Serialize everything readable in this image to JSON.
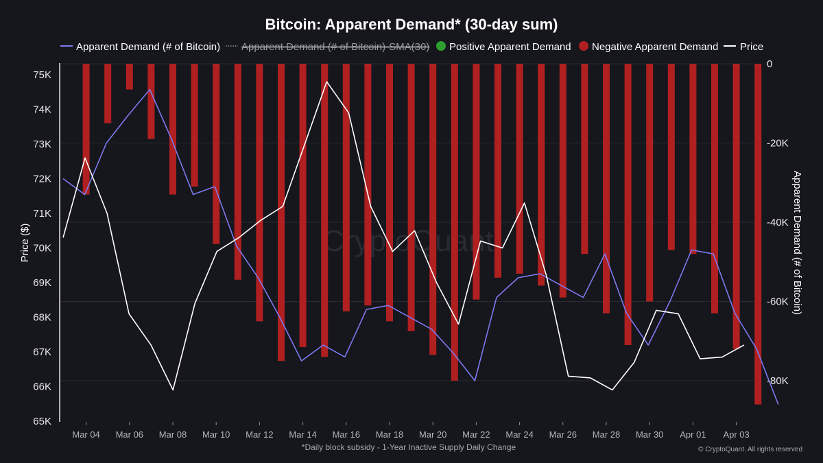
{
  "chart_data": {
    "type": "bar",
    "title": "Bitcoin: Apparent Demand* (30-day sum)",
    "ylabel_left": "Price ($)",
    "ylabel_right": "Apparent Demand (# of Bitcoin)",
    "footnote": "*Daily block subsidy - 1-Year Inactive Supply Daily Change",
    "copyright": "© CryptoQuant. All rights reserved",
    "watermark": "CryptoQuant",
    "legend": [
      {
        "label": "Apparent Demand (# of Bitcoin)",
        "color": "#7b7bf0",
        "marker": "line",
        "struck": false
      },
      {
        "label": "Apparent Demand (# of Bitcoin)-SMA(30)",
        "color": "#9a9aa3",
        "marker": "dotted",
        "struck": true
      },
      {
        "label": "Positive Apparent Demand",
        "color": "#2e9e2e",
        "marker": "circle",
        "struck": false
      },
      {
        "label": "Negative Apparent Demand",
        "color": "#b02020",
        "marker": "circle",
        "struck": false
      },
      {
        "label": "Price",
        "color": "#ffffff",
        "marker": "line",
        "struck": false
      }
    ],
    "x_start": "Mar 03",
    "x_ticks": [
      "Mar 04",
      "Mar 06",
      "Mar 08",
      "Mar 10",
      "Mar 12",
      "Mar 14",
      "Mar 16",
      "Mar 18",
      "Mar 20",
      "Mar 22",
      "Mar 24",
      "Mar 26",
      "Mar 28",
      "Mar 30",
      "Apr 01",
      "Apr 03"
    ],
    "y_left": {
      "ticks": [
        "65K",
        "66K",
        "67K",
        "68K",
        "69K",
        "70K",
        "71K",
        "72K",
        "73K",
        "74K",
        "75K"
      ],
      "ylim": [
        65000,
        75300
      ]
    },
    "y_right": {
      "ticks": [
        "0",
        "-20K",
        "-40K",
        "-60K",
        "-80K"
      ],
      "ylim": [
        -90000,
        0
      ]
    },
    "series": [
      {
        "name": "Price",
        "axis": "left",
        "color": "#ffffff",
        "values": [
          70300,
          72600,
          71000,
          68100,
          67200,
          65900,
          68400,
          69900,
          70300,
          70800,
          71200,
          73000,
          74800,
          73900,
          71200,
          69900,
          70500,
          69000,
          67800,
          70200,
          70000,
          71300,
          69200,
          66300,
          66250,
          65900,
          66700,
          68200,
          68100,
          66800,
          66850,
          67200
        ]
      },
      {
        "name": "Apparent Demand (# of Bitcoin)",
        "axis": "right",
        "color": "#7b7bf0",
        "values": [
          -29000,
          -33000,
          -20000,
          -13000,
          -6500,
          -19000,
          -33000,
          -31000,
          -46000,
          -54000,
          -64000,
          -75000,
          -71000,
          -74000,
          -62000,
          -61000,
          -64000,
          -67000,
          -73000,
          -80000,
          -59000,
          -54000,
          -53000,
          -56000,
          -59000,
          -48000,
          -63000,
          -71000,
          -60000,
          -47000,
          -48000,
          -63000,
          -72000,
          -86000
        ]
      },
      {
        "name": "Negative Apparent Demand",
        "axis": "right",
        "color": "#b02020",
        "values": [
          -33000,
          -15000,
          -6500,
          -19000,
          -33000,
          -31000,
          -45500,
          -54500,
          -65000,
          -75000,
          -71500,
          -74000,
          -62500,
          -61000,
          -65000,
          -67500,
          -73500,
          -80000,
          -59500,
          -54000,
          -53000,
          -56000,
          -59000,
          -48000,
          -63000,
          -71000,
          -60000,
          -47000,
          -48000,
          -63000,
          -72000,
          -86000
        ]
      }
    ],
    "grid": "horizontal"
  }
}
